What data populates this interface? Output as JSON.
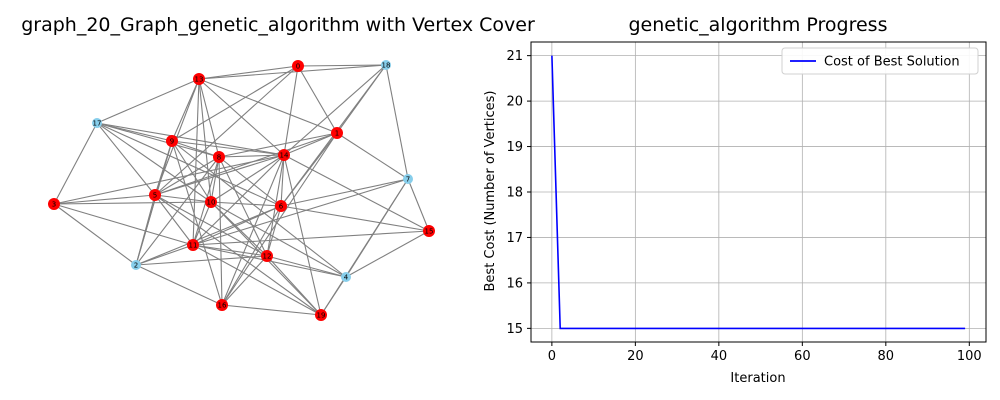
{
  "chart_data": [
    {
      "type": "graph",
      "title": "graph_20_Graph_genetic_algorithm with Vertex Cover",
      "colors": {
        "cover": "#ff0000",
        "non_cover": "#87ceeb",
        "edge": "#808080"
      },
      "nodes": [
        {
          "id": "0",
          "in_cover": true
        },
        {
          "id": "18",
          "in_cover": false
        },
        {
          "id": "13",
          "in_cover": true
        },
        {
          "id": "17",
          "in_cover": false
        },
        {
          "id": "1",
          "in_cover": true
        },
        {
          "id": "9",
          "in_cover": true
        },
        {
          "id": "8",
          "in_cover": true
        },
        {
          "id": "14",
          "in_cover": true
        },
        {
          "id": "7",
          "in_cover": false
        },
        {
          "id": "3",
          "in_cover": true
        },
        {
          "id": "5",
          "in_cover": true
        },
        {
          "id": "10",
          "in_cover": true
        },
        {
          "id": "6",
          "in_cover": true
        },
        {
          "id": "15",
          "in_cover": true
        },
        {
          "id": "11",
          "in_cover": true
        },
        {
          "id": "2",
          "in_cover": false
        },
        {
          "id": "12",
          "in_cover": true
        },
        {
          "id": "4",
          "in_cover": false
        },
        {
          "id": "16",
          "in_cover": true
        },
        {
          "id": "19",
          "in_cover": true
        }
      ],
      "edges": [
        [
          "13",
          "0"
        ],
        [
          "13",
          "18"
        ],
        [
          "0",
          "18"
        ],
        [
          "0",
          "14"
        ],
        [
          "0",
          "1"
        ],
        [
          "0",
          "9"
        ],
        [
          "0",
          "5"
        ],
        [
          "18",
          "1"
        ],
        [
          "18",
          "7"
        ],
        [
          "18",
          "14"
        ],
        [
          "18",
          "6"
        ],
        [
          "13",
          "17"
        ],
        [
          "13",
          "9"
        ],
        [
          "13",
          "8"
        ],
        [
          "13",
          "14"
        ],
        [
          "13",
          "5"
        ],
        [
          "13",
          "10"
        ],
        [
          "13",
          "11"
        ],
        [
          "13",
          "1"
        ],
        [
          "17",
          "3"
        ],
        [
          "17",
          "8"
        ],
        [
          "17",
          "14"
        ],
        [
          "17",
          "10"
        ],
        [
          "17",
          "6"
        ],
        [
          "17",
          "5"
        ],
        [
          "17",
          "9"
        ],
        [
          "1",
          "14"
        ],
        [
          "1",
          "7"
        ],
        [
          "1",
          "6"
        ],
        [
          "1",
          "5"
        ],
        [
          "1",
          "8"
        ],
        [
          "1",
          "16"
        ],
        [
          "9",
          "8"
        ],
        [
          "9",
          "14"
        ],
        [
          "9",
          "5"
        ],
        [
          "9",
          "10"
        ],
        [
          "9",
          "16"
        ],
        [
          "9",
          "4"
        ],
        [
          "9",
          "2"
        ],
        [
          "8",
          "14"
        ],
        [
          "8",
          "6"
        ],
        [
          "8",
          "10"
        ],
        [
          "8",
          "11"
        ],
        [
          "8",
          "5"
        ],
        [
          "8",
          "2"
        ],
        [
          "8",
          "12"
        ],
        [
          "8",
          "16"
        ],
        [
          "14",
          "5"
        ],
        [
          "14",
          "6"
        ],
        [
          "14",
          "19"
        ],
        [
          "14",
          "16"
        ],
        [
          "14",
          "15"
        ],
        [
          "14",
          "11"
        ],
        [
          "14",
          "10"
        ],
        [
          "14",
          "12"
        ],
        [
          "7",
          "6"
        ],
        [
          "7",
          "15"
        ],
        [
          "7",
          "4"
        ],
        [
          "7",
          "19"
        ],
        [
          "7",
          "11"
        ],
        [
          "3",
          "5"
        ],
        [
          "3",
          "10"
        ],
        [
          "3",
          "2"
        ],
        [
          "3",
          "14"
        ],
        [
          "3",
          "11"
        ],
        [
          "5",
          "10"
        ],
        [
          "5",
          "11"
        ],
        [
          "5",
          "2"
        ],
        [
          "5",
          "19"
        ],
        [
          "5",
          "12"
        ],
        [
          "10",
          "6"
        ],
        [
          "10",
          "19"
        ],
        [
          "10",
          "4"
        ],
        [
          "10",
          "11"
        ],
        [
          "10",
          "12"
        ],
        [
          "6",
          "11"
        ],
        [
          "6",
          "15"
        ],
        [
          "6",
          "2"
        ],
        [
          "6",
          "12"
        ],
        [
          "6",
          "16"
        ],
        [
          "15",
          "4"
        ],
        [
          "15",
          "11"
        ],
        [
          "11",
          "2"
        ],
        [
          "11",
          "12"
        ],
        [
          "11",
          "19"
        ],
        [
          "11",
          "4"
        ],
        [
          "2",
          "12"
        ],
        [
          "2",
          "16"
        ],
        [
          "2",
          "9"
        ],
        [
          "12",
          "19"
        ],
        [
          "12",
          "4"
        ],
        [
          "12",
          "16"
        ],
        [
          "4",
          "19"
        ],
        [
          "16",
          "19"
        ]
      ]
    },
    {
      "type": "line",
      "title": "genetic_algorithm Progress",
      "xlabel": "Iteration",
      "ylabel": "Best Cost (Number of Vertices)",
      "xlim": [
        -5,
        104
      ],
      "ylim": [
        14.7,
        21.3
      ],
      "xticks": [
        0,
        20,
        40,
        60,
        80,
        100
      ],
      "yticks": [
        15,
        16,
        17,
        18,
        19,
        20,
        21
      ],
      "grid": true,
      "legend_placement": "upper-right",
      "series": [
        {
          "name": "Cost of Best Solution",
          "color": "#0000ff",
          "x": [
            0,
            2,
            99
          ],
          "y": [
            21,
            15,
            15
          ]
        }
      ]
    }
  ]
}
